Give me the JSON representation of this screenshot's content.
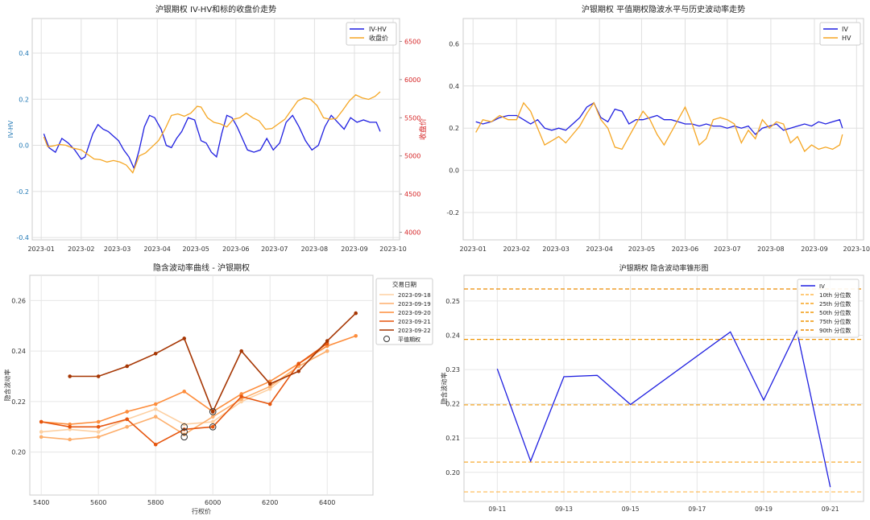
{
  "chart_data": [
    {
      "type": "line",
      "title": "沪银期权 IV-HV和标的收盘价走势",
      "xlabel": "",
      "ylabel": "IV-HV",
      "y2label": "收盘价",
      "ylim": [
        -0.41,
        0.55
      ],
      "y2lim": [
        3900,
        6800
      ],
      "yticks": [
        -0.4,
        -0.2,
        0.0,
        0.2,
        0.4
      ],
      "y2ticks": [
        4000,
        4500,
        5000,
        5500,
        6000,
        6500
      ],
      "xlim": [
        "2022-12-25",
        "2023-10-06"
      ],
      "xticks": [
        "2023-01",
        "2023-02",
        "2023-03",
        "2023-04",
        "2023-05",
        "2023-06",
        "2023-07",
        "2023-08",
        "2023-09",
        "2023-10"
      ],
      "legend": [
        "IV-HV",
        "收盘价"
      ],
      "legend_position": "top-right",
      "grid": true,
      "series": [
        {
          "name": "IV-HV",
          "axis": "left",
          "color": "#1f1fe0",
          "x": [
            "2023-01-03",
            "2023-01-07",
            "2023-01-12",
            "2023-01-17",
            "2023-01-22",
            "2023-01-27",
            "2023-02-01",
            "2023-02-04",
            "2023-02-07",
            "2023-02-10",
            "2023-02-14",
            "2023-02-18",
            "2023-02-22",
            "2023-02-26",
            "2023-03-02",
            "2023-03-06",
            "2023-03-10",
            "2023-03-14",
            "2023-03-18",
            "2023-03-22",
            "2023-03-26",
            "2023-03-30",
            "2023-04-04",
            "2023-04-08",
            "2023-04-12",
            "2023-04-16",
            "2023-04-20",
            "2023-04-25",
            "2023-04-30",
            "2023-05-05",
            "2023-05-09",
            "2023-05-13",
            "2023-05-17",
            "2023-05-21",
            "2023-05-25",
            "2023-05-29",
            "2023-06-02",
            "2023-06-06",
            "2023-06-10",
            "2023-06-15",
            "2023-06-20",
            "2023-06-25",
            "2023-06-30",
            "2023-07-05",
            "2023-07-10",
            "2023-07-15",
            "2023-07-20",
            "2023-07-25",
            "2023-07-30",
            "2023-08-04",
            "2023-08-09",
            "2023-08-14",
            "2023-08-19",
            "2023-08-24",
            "2023-08-29",
            "2023-09-03",
            "2023-09-08",
            "2023-09-13",
            "2023-09-18",
            "2023-09-21"
          ],
          "y": [
            0.05,
            -0.01,
            -0.03,
            0.03,
            0.01,
            -0.02,
            -0.06,
            -0.05,
            0.0,
            0.05,
            0.09,
            0.07,
            0.06,
            0.04,
            0.02,
            -0.02,
            -0.05,
            -0.1,
            -0.02,
            0.08,
            0.13,
            0.12,
            0.07,
            0.0,
            -0.01,
            0.03,
            0.06,
            0.12,
            0.11,
            0.02,
            0.01,
            -0.03,
            -0.05,
            0.05,
            0.13,
            0.12,
            0.08,
            0.03,
            -0.02,
            -0.03,
            -0.02,
            0.03,
            -0.02,
            0.01,
            0.1,
            0.13,
            0.08,
            0.02,
            -0.02,
            0.0,
            0.08,
            0.13,
            0.1,
            0.07,
            0.12,
            0.1,
            0.11,
            0.1,
            0.1,
            0.06
          ]
        },
        {
          "name": "收盘价",
          "axis": "right",
          "color": "#f5a623",
          "x": [
            "2023-01-03",
            "2023-01-06",
            "2023-01-10",
            "2023-01-15",
            "2023-01-20",
            "2023-01-26",
            "2023-02-01",
            "2023-02-06",
            "2023-02-11",
            "2023-02-16",
            "2023-02-21",
            "2023-02-26",
            "2023-03-03",
            "2023-03-08",
            "2023-03-13",
            "2023-03-18",
            "2023-03-23",
            "2023-03-28",
            "2023-04-02",
            "2023-04-07",
            "2023-04-12",
            "2023-04-17",
            "2023-04-22",
            "2023-04-27",
            "2023-05-02",
            "2023-05-05",
            "2023-05-10",
            "2023-05-15",
            "2023-05-20",
            "2023-05-25",
            "2023-05-30",
            "2023-06-04",
            "2023-06-09",
            "2023-06-14",
            "2023-06-19",
            "2023-06-24",
            "2023-06-29",
            "2023-07-04",
            "2023-07-09",
            "2023-07-14",
            "2023-07-19",
            "2023-07-24",
            "2023-07-29",
            "2023-08-03",
            "2023-08-08",
            "2023-08-13",
            "2023-08-18",
            "2023-08-23",
            "2023-08-28",
            "2023-09-02",
            "2023-09-07",
            "2023-09-12",
            "2023-09-17",
            "2023-09-21"
          ],
          "y": [
            5250,
            5120,
            5130,
            5150,
            5140,
            5100,
            5080,
            5020,
            4960,
            4950,
            4920,
            4940,
            4920,
            4880,
            4780,
            5000,
            5040,
            5120,
            5200,
            5350,
            5530,
            5550,
            5520,
            5560,
            5650,
            5640,
            5500,
            5440,
            5420,
            5380,
            5480,
            5500,
            5560,
            5500,
            5460,
            5350,
            5360,
            5420,
            5480,
            5600,
            5720,
            5760,
            5740,
            5660,
            5500,
            5480,
            5490,
            5600,
            5720,
            5800,
            5760,
            5740,
            5780,
            5840
          ]
        }
      ]
    },
    {
      "type": "line",
      "title": "沪银期权 平值期权隐波水平与历史波动率走势",
      "xlabel": "",
      "ylabel": "",
      "ylim": [
        -0.33,
        0.72
      ],
      "yticks": [
        -0.2,
        0.0,
        0.2,
        0.4,
        0.6
      ],
      "xlim": [
        "2022-12-25",
        "2023-10-06"
      ],
      "xticks": [
        "2023-01",
        "2023-02",
        "2023-03",
        "2023-04",
        "2023-05",
        "2023-06",
        "2023-07",
        "2023-08",
        "2023-09",
        "2023-10"
      ],
      "legend": [
        "IV",
        "HV"
      ],
      "legend_position": "top-right",
      "grid": true,
      "series": [
        {
          "name": "IV",
          "color": "#1f1fe0",
          "x": [
            "2023-01-03",
            "2023-01-08",
            "2023-01-14",
            "2023-01-20",
            "2023-01-26",
            "2023-02-01",
            "2023-02-06",
            "2023-02-11",
            "2023-02-16",
            "2023-02-21",
            "2023-02-26",
            "2023-03-03",
            "2023-03-08",
            "2023-03-13",
            "2023-03-18",
            "2023-03-23",
            "2023-03-28",
            "2023-04-02",
            "2023-04-07",
            "2023-04-12",
            "2023-04-17",
            "2023-04-22",
            "2023-04-27",
            "2023-05-02",
            "2023-05-07",
            "2023-05-12",
            "2023-05-17",
            "2023-05-22",
            "2023-05-27",
            "2023-06-01",
            "2023-06-06",
            "2023-06-11",
            "2023-06-16",
            "2023-06-21",
            "2023-06-26",
            "2023-07-01",
            "2023-07-06",
            "2023-07-11",
            "2023-07-16",
            "2023-07-21",
            "2023-07-26",
            "2023-07-31",
            "2023-08-05",
            "2023-08-10",
            "2023-08-15",
            "2023-08-20",
            "2023-08-25",
            "2023-08-30",
            "2023-09-04",
            "2023-09-09",
            "2023-09-14",
            "2023-09-19",
            "2023-09-21"
          ],
          "y": [
            0.23,
            0.22,
            0.23,
            0.25,
            0.26,
            0.26,
            0.24,
            0.22,
            0.24,
            0.2,
            0.19,
            0.2,
            0.19,
            0.22,
            0.25,
            0.3,
            0.32,
            0.25,
            0.23,
            0.29,
            0.28,
            0.22,
            0.24,
            0.24,
            0.25,
            0.26,
            0.24,
            0.24,
            0.23,
            0.22,
            0.22,
            0.21,
            0.22,
            0.21,
            0.21,
            0.2,
            0.21,
            0.2,
            0.21,
            0.17,
            0.2,
            0.21,
            0.22,
            0.19,
            0.2,
            0.21,
            0.22,
            0.21,
            0.23,
            0.22,
            0.23,
            0.24,
            0.2
          ]
        },
        {
          "name": "HV",
          "color": "#f5a623",
          "x": [
            "2023-01-03",
            "2023-01-08",
            "2023-01-14",
            "2023-01-20",
            "2023-01-26",
            "2023-02-01",
            "2023-02-06",
            "2023-02-11",
            "2023-02-16",
            "2023-02-21",
            "2023-02-26",
            "2023-03-03",
            "2023-03-08",
            "2023-03-13",
            "2023-03-18",
            "2023-03-23",
            "2023-03-28",
            "2023-04-02",
            "2023-04-07",
            "2023-04-12",
            "2023-04-17",
            "2023-04-22",
            "2023-04-27",
            "2023-05-02",
            "2023-05-07",
            "2023-05-12",
            "2023-05-17",
            "2023-05-22",
            "2023-05-27",
            "2023-06-01",
            "2023-06-06",
            "2023-06-11",
            "2023-06-16",
            "2023-06-21",
            "2023-06-26",
            "2023-07-01",
            "2023-07-06",
            "2023-07-11",
            "2023-07-16",
            "2023-07-21",
            "2023-07-26",
            "2023-07-31",
            "2023-08-05",
            "2023-08-10",
            "2023-08-15",
            "2023-08-20",
            "2023-08-25",
            "2023-08-30",
            "2023-09-04",
            "2023-09-09",
            "2023-09-14",
            "2023-09-19",
            "2023-09-21"
          ],
          "y": [
            0.18,
            0.24,
            0.23,
            0.26,
            0.24,
            0.24,
            0.32,
            0.28,
            0.2,
            0.12,
            0.14,
            0.16,
            0.13,
            0.17,
            0.21,
            0.27,
            0.32,
            0.24,
            0.2,
            0.11,
            0.1,
            0.16,
            0.22,
            0.28,
            0.24,
            0.17,
            0.12,
            0.18,
            0.24,
            0.3,
            0.22,
            0.12,
            0.15,
            0.24,
            0.25,
            0.24,
            0.22,
            0.13,
            0.19,
            0.15,
            0.24,
            0.2,
            0.23,
            0.22,
            0.13,
            0.16,
            0.09,
            0.12,
            0.1,
            0.11,
            0.1,
            0.12,
            0.17
          ]
        }
      ]
    },
    {
      "type": "line",
      "title": "隐含波动率曲线 - 沪银期权",
      "xlabel": "行权价",
      "ylabel": "隐含波动率",
      "xlim": [
        5360,
        6560
      ],
      "ylim": [
        0.183,
        0.27
      ],
      "xticks": [
        5400,
        5600,
        5800,
        6000,
        6200,
        6400
      ],
      "yticks": [
        0.2,
        0.22,
        0.24,
        0.26
      ],
      "legend_title": "交易日期",
      "legend": [
        "2023-09-18",
        "2023-09-19",
        "2023-09-20",
        "2023-09-21",
        "2023-09-22",
        "平值期权"
      ],
      "legend_position": "top-right",
      "grid": true,
      "series": [
        {
          "name": "2023-09-18",
          "color": "#fdd0a2",
          "x": [
            5400,
            5500,
            5600,
            5700,
            5800,
            5900,
            6000,
            6100,
            6200,
            6300,
            6400
          ],
          "y": [
            0.208,
            0.209,
            0.208,
            0.213,
            0.217,
            0.211,
            0.212,
            0.22,
            0.225,
            0.234,
            0.24
          ]
        },
        {
          "name": "2023-09-19",
          "color": "#fdae6b",
          "x": [
            5400,
            5500,
            5600,
            5700,
            5800,
            5900,
            6000,
            6100,
            6200,
            6300,
            6400
          ],
          "y": [
            0.206,
            0.205,
            0.206,
            0.21,
            0.214,
            0.207,
            0.214,
            0.221,
            0.226,
            0.234,
            0.24
          ]
        },
        {
          "name": "2023-09-20",
          "color": "#fd8d3c",
          "x": [
            5400,
            5500,
            5600,
            5700,
            5800,
            5900,
            6000,
            6100,
            6200,
            6300,
            6400,
            6500
          ],
          "y": [
            0.212,
            0.211,
            0.212,
            0.216,
            0.219,
            0.224,
            0.216,
            0.223,
            0.228,
            0.235,
            0.242,
            0.246
          ]
        },
        {
          "name": "2023-09-21",
          "color": "#e6550d",
          "x": [
            5400,
            5500,
            5600,
            5700,
            5800,
            5900,
            6000,
            6100,
            6200,
            6300,
            6400
          ],
          "y": [
            0.212,
            0.21,
            0.21,
            0.213,
            0.203,
            0.209,
            0.21,
            0.222,
            0.219,
            0.235,
            0.243
          ]
        },
        {
          "name": "2023-09-22",
          "color": "#a63603",
          "x": [
            5500,
            5600,
            5700,
            5800,
            5900,
            6000,
            6100,
            6200,
            6300,
            6400,
            6500
          ],
          "y": [
            0.23,
            0.23,
            0.234,
            0.239,
            0.245,
            0.216,
            0.24,
            0.227,
            0.232,
            0.244,
            0.255
          ]
        }
      ],
      "atm_points": {
        "name": "平值期权",
        "x": [
          5900,
          5900,
          5900,
          6000,
          6000
        ],
        "y": [
          0.206,
          0.208,
          0.21,
          0.216,
          0.21
        ]
      }
    },
    {
      "type": "line",
      "title": "沪银期权 隐含波动率锥形图",
      "xlabel": "",
      "ylabel": "隐含波动率",
      "ylim": [
        0.1915,
        0.2575
      ],
      "yticks": [
        0.2,
        0.21,
        0.22,
        0.23,
        0.24,
        0.25
      ],
      "xlim": [
        "09-10",
        "09-22"
      ],
      "xticks": [
        "09-11",
        "09-13",
        "09-15",
        "09-17",
        "09-19",
        "09-21"
      ],
      "legend": [
        "IV",
        "10th 分位数",
        "25th 分位数",
        "50th 分位数",
        "75th 分位数",
        "90th 分位数"
      ],
      "legend_position": "top-right",
      "grid": true,
      "series": [
        {
          "name": "IV",
          "color": "#1f1fe0",
          "x": [
            "09-11",
            "09-12",
            "09-13",
            "09-14",
            "09-15",
            "09-18",
            "09-19",
            "09-20",
            "09-21"
          ],
          "y": [
            0.2302,
            0.2033,
            0.2279,
            0.2283,
            0.2198,
            0.241,
            0.2211,
            0.2412,
            0.1957
          ]
        }
      ],
      "quantiles": [
        {
          "name": "10th 分位数",
          "value": 0.1943,
          "color": "#ffb84d"
        },
        {
          "name": "25th 分位数",
          "value": 0.203,
          "color": "#f7a21b"
        },
        {
          "name": "50th 分位数",
          "value": 0.2197,
          "color": "#f29a0c"
        },
        {
          "name": "75th 分位数",
          "value": 0.2388,
          "color": "#ef9300"
        },
        {
          "name": "90th 分位数",
          "value": 0.2535,
          "color": "#ec8b00"
        }
      ]
    }
  ]
}
